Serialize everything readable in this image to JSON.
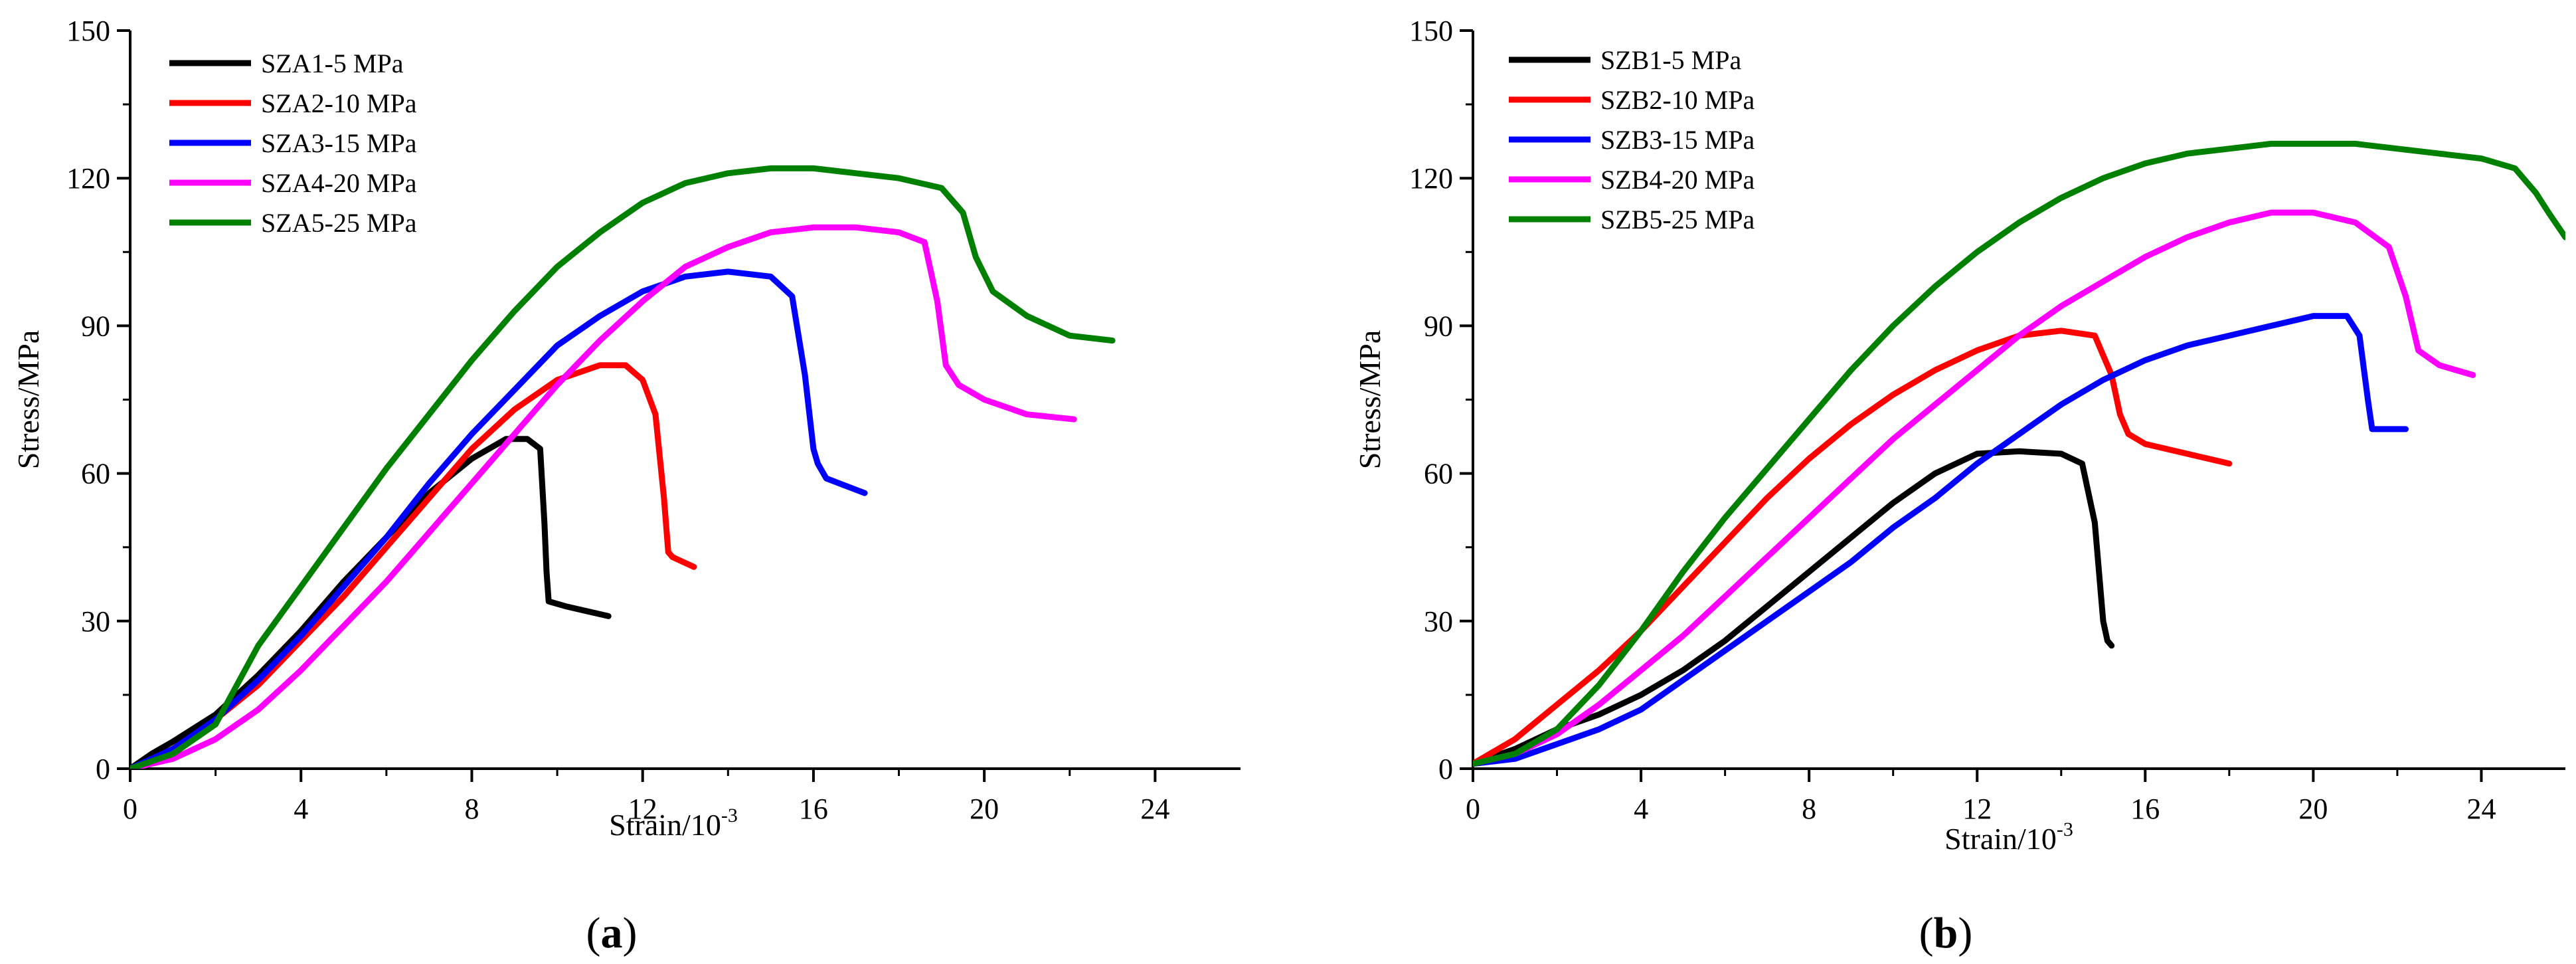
{
  "figure": {
    "panels": [
      {
        "open": "(",
        "letter": "a",
        "close": ")"
      },
      {
        "open": "(",
        "letter": "b",
        "close": ")"
      }
    ]
  },
  "chart_data": [
    {
      "type": "line",
      "panel": "a",
      "xlabel": "Strain/10",
      "xlabel_exponent": "-3",
      "ylabel": "Stress/MPa",
      "xlim": [
        0,
        26
      ],
      "ylim": [
        0,
        150
      ],
      "xticks": [
        0,
        4,
        8,
        12,
        16,
        20,
        24
      ],
      "yticks": [
        0,
        30,
        60,
        90,
        120,
        150
      ],
      "grid": false,
      "legend_position": "top-left",
      "series": [
        {
          "name": "SZA1-5 MPa",
          "color": "#000000",
          "x": [
            0,
            0.5,
            1,
            2,
            3,
            4,
            5,
            6,
            7,
            8,
            8.8,
            9.3,
            9.6,
            9.7,
            9.75,
            9.8,
            10.2,
            11.2
          ],
          "y": [
            0,
            3,
            5.5,
            11,
            19,
            28,
            38,
            47,
            56,
            63,
            67,
            67,
            65,
            50,
            40,
            34,
            33,
            31
          ]
        },
        {
          "name": "SZA2-10 MPa",
          "color": "#ff0000",
          "x": [
            0,
            1,
            2,
            3,
            4,
            5,
            6,
            7,
            8,
            9,
            10,
            11,
            11.6,
            12.0,
            12.3,
            12.5,
            12.6,
            12.7,
            13.2
          ],
          "y": [
            0,
            4,
            10,
            17,
            26,
            35,
            45,
            55,
            65,
            73,
            79,
            82,
            82,
            79,
            72,
            55,
            44,
            43,
            41
          ]
        },
        {
          "name": "SZA3-15 MPa",
          "color": "#0000ff",
          "x": [
            0,
            1,
            2,
            3,
            4,
            5,
            6,
            7,
            8,
            9,
            10,
            11,
            12,
            13,
            14,
            15,
            15.5,
            15.8,
            16.0,
            16.1,
            16.3,
            17.2
          ],
          "y": [
            0,
            4,
            10,
            18,
            27,
            37,
            47,
            58,
            68,
            77,
            86,
            92,
            97,
            100,
            101,
            100,
            96,
            80,
            65,
            62,
            59,
            56
          ]
        },
        {
          "name": "SZA4-20 MPa",
          "color": "#ff00ff",
          "x": [
            0,
            1,
            2,
            3,
            4,
            5,
            6,
            7,
            8,
            9,
            10,
            11,
            12,
            13,
            14,
            15,
            16,
            17,
            18,
            18.6,
            18.9,
            19.1,
            19.4,
            20,
            21,
            22.1
          ],
          "y": [
            0,
            2,
            6,
            12,
            20,
            29,
            38,
            48,
            58,
            68,
            78,
            87,
            95,
            102,
            106,
            109,
            110,
            110,
            109,
            107,
            95,
            82,
            78,
            75,
            72,
            71
          ]
        },
        {
          "name": "SZA5-25 MPa",
          "color": "#008000",
          "x": [
            0,
            1,
            2,
            3,
            4,
            5,
            6,
            7,
            8,
            9,
            10,
            11,
            12,
            13,
            14,
            15,
            16,
            17,
            18,
            19,
            19.5,
            19.8,
            20.2,
            21,
            22,
            23
          ],
          "y": [
            0,
            3,
            9,
            25,
            37,
            49,
            61,
            72,
            83,
            93,
            102,
            109,
            115,
            119,
            121,
            122,
            122,
            121,
            120,
            118,
            113,
            104,
            97,
            92,
            88,
            87
          ]
        }
      ]
    },
    {
      "type": "line",
      "panel": "b",
      "xlabel": "Strain/10",
      "xlabel_exponent": "-3",
      "ylabel": "Stress/MPa",
      "xlim": [
        0,
        26
      ],
      "ylim": [
        0,
        150
      ],
      "xticks": [
        0,
        4,
        8,
        12,
        16,
        20,
        24
      ],
      "yticks": [
        0,
        30,
        60,
        90,
        120,
        150
      ],
      "grid": false,
      "legend_position": "top-left",
      "series": [
        {
          "name": "SZB1-5 MPa",
          "color": "#000000",
          "x": [
            0,
            1,
            2,
            3,
            4,
            5,
            6,
            7,
            8,
            9,
            10,
            11,
            12,
            13,
            14,
            14.5,
            14.8,
            14.9,
            15.0,
            15.1,
            15.2
          ],
          "y": [
            1,
            4,
            8,
            11,
            15,
            20,
            26,
            33,
            40,
            47,
            54,
            60,
            64,
            64.5,
            64,
            62,
            50,
            40,
            30,
            26,
            25
          ]
        },
        {
          "name": "SZB2-10 MPa",
          "color": "#ff0000",
          "x": [
            0,
            1,
            2,
            3,
            4,
            5,
            6,
            7,
            8,
            9,
            10,
            11,
            12,
            13,
            14,
            14.8,
            15.0,
            15.2,
            15.4,
            15.6,
            16,
            17,
            18
          ],
          "y": [
            1,
            6,
            13,
            20,
            28,
            37,
            46,
            55,
            63,
            70,
            76,
            81,
            85,
            88,
            89,
            88,
            84,
            80,
            72,
            68,
            66,
            64,
            62
          ]
        },
        {
          "name": "SZB3-15 MPa",
          "color": "#0000ff",
          "x": [
            0,
            1,
            2,
            3,
            4,
            5,
            6,
            7,
            8,
            9,
            10,
            11,
            12,
            13,
            14,
            15,
            16,
            17,
            18,
            19,
            20,
            20.8,
            21.1,
            21.3,
            21.4,
            22.2
          ],
          "y": [
            1,
            2,
            5,
            8,
            12,
            18,
            24,
            30,
            36,
            42,
            49,
            55,
            62,
            68,
            74,
            79,
            83,
            86,
            88,
            90,
            92,
            92,
            88,
            75,
            69,
            69
          ]
        },
        {
          "name": "SZB4-20 MPa",
          "color": "#ff00ff",
          "x": [
            0,
            1,
            2,
            3,
            4,
            5,
            6,
            7,
            8,
            9,
            10,
            11,
            12,
            13,
            14,
            15,
            16,
            17,
            18,
            19,
            20,
            21,
            21.8,
            22.2,
            22.5,
            23,
            23.8
          ],
          "y": [
            1,
            3,
            7,
            13,
            20,
            27,
            35,
            43,
            51,
            59,
            67,
            74,
            81,
            88,
            94,
            99,
            104,
            108,
            111,
            113,
            113,
            111,
            106,
            96,
            85,
            82,
            80
          ]
        },
        {
          "name": "SZB5-25 MPa",
          "color": "#008000",
          "x": [
            0,
            1,
            2,
            3,
            4,
            5,
            6,
            7,
            8,
            9,
            10,
            11,
            12,
            13,
            14,
            15,
            16,
            17,
            18,
            19,
            20,
            21,
            22,
            23,
            24,
            24.8,
            25.3,
            25.6,
            26
          ],
          "y": [
            1,
            3,
            8,
            17,
            28,
            40,
            51,
            61,
            71,
            81,
            90,
            98,
            105,
            111,
            116,
            120,
            123,
            125,
            126,
            127,
            127,
            127,
            126,
            125,
            124,
            122,
            117,
            113,
            108
          ]
        }
      ]
    }
  ]
}
